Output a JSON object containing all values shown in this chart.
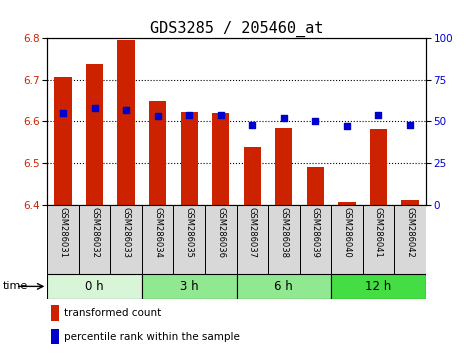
{
  "title": "GDS3285 / 205460_at",
  "samples": [
    "GSM286031",
    "GSM286032",
    "GSM286033",
    "GSM286034",
    "GSM286035",
    "GSM286036",
    "GSM286037",
    "GSM286038",
    "GSM286039",
    "GSM286040",
    "GSM286041",
    "GSM286042"
  ],
  "red_values": [
    6.706,
    6.738,
    6.795,
    6.648,
    6.622,
    6.621,
    6.538,
    6.584,
    6.49,
    6.407,
    6.581,
    6.412
  ],
  "blue_values": [
    55,
    58,
    57,
    53,
    54,
    54,
    48,
    52,
    50,
    47,
    54,
    48
  ],
  "ylim_left": [
    6.4,
    6.8
  ],
  "ylim_right": [
    0,
    100
  ],
  "yticks_left": [
    6.4,
    6.5,
    6.6,
    6.7,
    6.8
  ],
  "yticks_right": [
    0,
    25,
    50,
    75,
    100
  ],
  "groups": [
    {
      "label": "0 h",
      "start": 0,
      "end": 3,
      "color": "#d8f5d8"
    },
    {
      "label": "3 h",
      "start": 3,
      "end": 6,
      "color": "#90e890"
    },
    {
      "label": "6 h",
      "start": 6,
      "end": 9,
      "color": "#90e890"
    },
    {
      "label": "12 h",
      "start": 9,
      "end": 12,
      "color": "#44dd44"
    }
  ],
  "bar_color": "#cc2200",
  "scatter_color": "#0000cc",
  "bar_bottom": 6.4,
  "bar_width": 0.55,
  "xlabel_time": "time",
  "legend_red": "transformed count",
  "legend_blue": "percentile rank within the sample",
  "tick_label_color_left": "#cc2200",
  "tick_label_color_right": "#0000cc",
  "title_fontsize": 11,
  "axis_fontsize": 7.5,
  "group_label_fontsize": 8.5,
  "sample_label_fontsize": 6,
  "sample_box_color": "#d8d8d8"
}
